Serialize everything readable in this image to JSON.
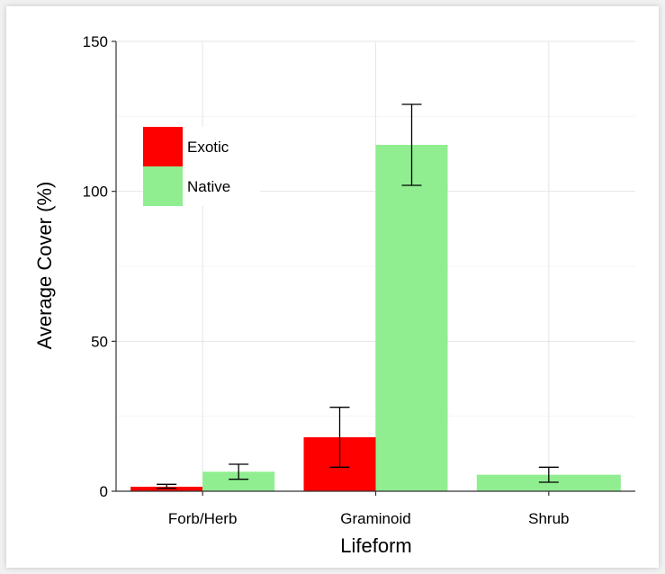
{
  "chart_data": {
    "type": "bar",
    "categories": [
      "Forb/Herb",
      "Graminoid",
      "Shrub"
    ],
    "series": [
      {
        "name": "Exotic",
        "color": "#ff0000",
        "values": [
          1.5,
          18,
          null
        ],
        "error_low": [
          1,
          8,
          null
        ],
        "error_high": [
          2.3,
          28,
          null
        ]
      },
      {
        "name": "Native",
        "color": "#90ee90",
        "values": [
          6.5,
          115.5,
          5.5
        ],
        "error_low": [
          4,
          102,
          3
        ],
        "error_high": [
          9,
          129,
          8
        ]
      }
    ],
    "xlabel": "Lifeform",
    "ylabel": "Average Cover (%)",
    "ylim": [
      0,
      150
    ],
    "yticks": [
      0,
      50,
      100,
      150
    ],
    "grid": true,
    "legend_position": "top-left"
  }
}
